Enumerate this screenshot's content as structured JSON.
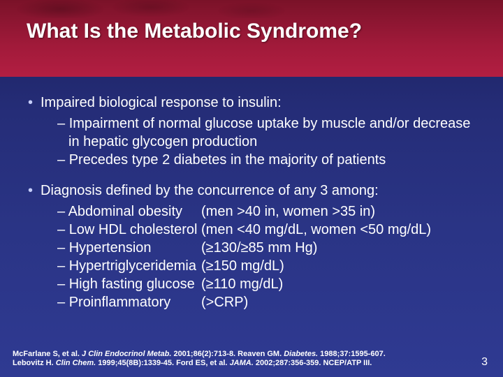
{
  "title": "What Is the Metabolic Syndrome?",
  "bullet1": {
    "lead": "Impaired biological response to insulin:",
    "subs": [
      "Impairment of normal glucose uptake by muscle and/or decrease in hepatic glycogen production",
      "Precedes type 2 diabetes in the majority of patients"
    ]
  },
  "bullet2": {
    "lead": "Diagnosis defined by the concurrence of any 3 among:",
    "criteria": [
      {
        "label": "Abdominal obesity",
        "value": "(men >40 in, women >35 in)"
      },
      {
        "label": "Low HDL cholesterol",
        "value": "(men <40 mg/dL, women <50 mg/dL)"
      },
      {
        "label": "Hypertension",
        "value": "(≥130/≥85 mm Hg)"
      },
      {
        "label": "Hypertriglyceridemia",
        "value": "(≥150 mg/dL)"
      },
      {
        "label": "High fasting glucose",
        "value": "(≥110 mg/dL)"
      },
      {
        "label": "Proinflammatory",
        "value": " (>CRP)"
      }
    ]
  },
  "citations": {
    "line1_a": "McFarlane S, et al. ",
    "line1_j1": "J Clin Endocrinol Metab.",
    "line1_b": " 2001;86(2):713-8. Reaven GM. ",
    "line1_j2": "Diabetes.",
    "line1_c": " 1988;37:1595-607.",
    "line2_a": "Lebovitz H. ",
    "line2_j1": "Clin Chem.",
    "line2_b": " 1999;45(8B):1339-45. Ford ES, et al. ",
    "line2_j2": "JAMA.",
    "line2_c": " 2002;287:356-359. NCEP/ATP III."
  },
  "pageNumber": "3"
}
